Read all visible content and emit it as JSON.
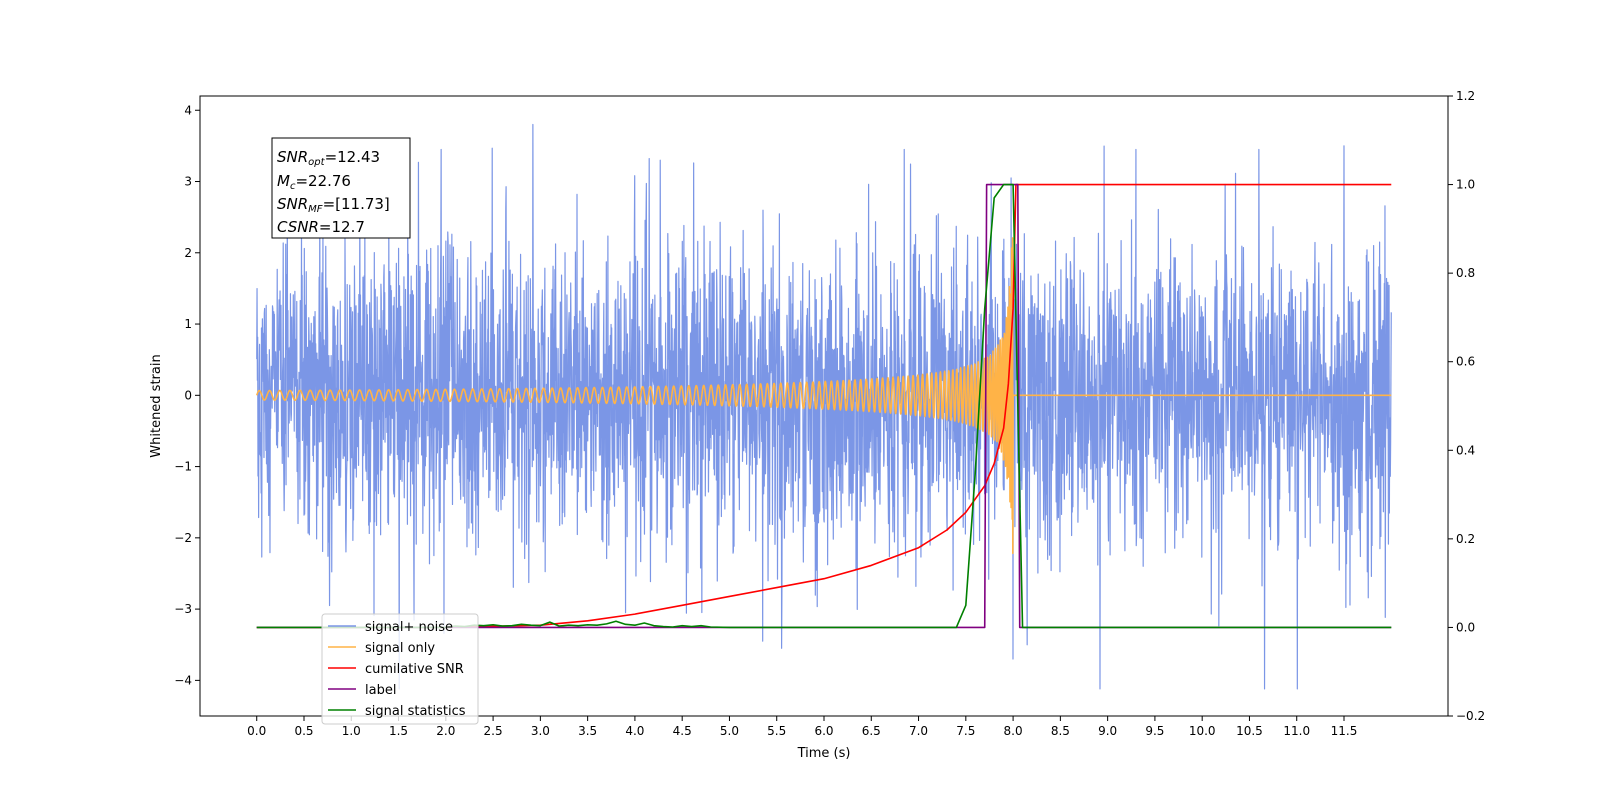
{
  "chart_data": {
    "type": "line",
    "xlabel": "Time (s)",
    "ylabel_left": "Whitened strain",
    "ylabel_right": "",
    "xlim": [
      -0.6,
      12.6
    ],
    "ylim_left": [
      -4.5,
      4.2
    ],
    "ylim_right": [
      -0.2,
      1.2
    ],
    "x_ticks": [
      0.0,
      0.5,
      1.0,
      1.5,
      2.0,
      2.5,
      3.0,
      3.5,
      4.0,
      4.5,
      5.0,
      5.5,
      6.0,
      6.5,
      7.0,
      7.5,
      8.0,
      8.5,
      9.0,
      9.5,
      10.0,
      10.5,
      11.0,
      11.5
    ],
    "x_tick_labels": [
      "0.0",
      "0.5",
      "1.0",
      "1.5",
      "2.0",
      "2.5",
      "3.0",
      "3.5",
      "4.0",
      "4.5",
      "5.0",
      "5.5",
      "6.0",
      "6.5",
      "7.0",
      "7.5",
      "8.0",
      "8.5",
      "9.0",
      "9.5",
      "10.0",
      "10.5",
      "11.0",
      "11.5"
    ],
    "y_left_ticks": [
      4,
      3,
      2,
      1,
      0,
      -1,
      -2,
      -3,
      -4
    ],
    "y_left_tick_labels": [
      "4",
      "3",
      "2",
      "1",
      "0",
      "−1",
      "−2",
      "−3",
      "−4"
    ],
    "y_right_ticks": [
      1.2,
      1.0,
      0.8,
      0.6,
      0.4,
      0.2,
      0.0,
      -0.2
    ],
    "y_right_tick_labels": [
      "1.2",
      "1.0",
      "0.8",
      "0.6",
      "0.4",
      "0.2",
      "0.0",
      "−0.2"
    ],
    "grid": false,
    "legend_position": "lower-left",
    "annotation": {
      "lines": [
        {
          "main": "SNR",
          "sub": "opt",
          "rest": "=12.43"
        },
        {
          "main": "M",
          "sub": "c",
          "rest": "=22.76"
        },
        {
          "main": "SNR",
          "sub": "MF",
          "rest": "=[11.73]"
        },
        {
          "main": "CSNR",
          "sub": "",
          "rest": "=12.7"
        }
      ]
    },
    "series": [
      {
        "name": "signal+ noise",
        "color": "#7b96e6",
        "axis": "left",
        "kind": "noise",
        "x_range": [
          0.0,
          12.0
        ],
        "std": 1.05,
        "max": 3.8,
        "min": -4.12,
        "spikes": [
          [
            2.92,
            3.8
          ],
          [
            8.92,
            -4.12
          ],
          [
            7.98,
            3.05
          ],
          [
            10.6,
            3.45
          ],
          [
            11.5,
            3.5
          ],
          [
            1.95,
            3.45
          ],
          [
            6.85,
            3.45
          ],
          [
            9.3,
            3.45
          ],
          [
            0.77,
            -2.95
          ],
          [
            3.9,
            -3.05
          ],
          [
            5.55,
            -3.55
          ],
          [
            8.0,
            -3.7
          ],
          [
            8.15,
            -3.5
          ],
          [
            5.35,
            -3.45
          ]
        ]
      },
      {
        "name": "signal only",
        "color": "#ffb347",
        "axis": "left",
        "kind": "chirp",
        "x_range": [
          0.0,
          12.0
        ],
        "merger_time": 8.0,
        "peak_amplitude": 2.1
      },
      {
        "name": "cumilative SNR",
        "color": "#ff0000",
        "axis": "right",
        "kind": "line",
        "x": [
          0.0,
          2.0,
          3.0,
          3.5,
          4.0,
          4.5,
          5.0,
          5.5,
          6.0,
          6.5,
          7.0,
          7.3,
          7.5,
          7.7,
          7.8,
          7.9,
          7.95,
          8.0,
          8.03,
          12.0
        ],
        "y": [
          0.0,
          0.0,
          0.005,
          0.015,
          0.03,
          0.05,
          0.07,
          0.09,
          0.11,
          0.14,
          0.18,
          0.22,
          0.26,
          0.32,
          0.37,
          0.45,
          0.55,
          0.72,
          1.0,
          1.0
        ]
      },
      {
        "name": "label",
        "color": "#800080",
        "axis": "right",
        "kind": "line",
        "x": [
          0.0,
          7.7,
          7.72,
          8.05,
          8.07,
          12.0
        ],
        "y": [
          0.0,
          0.0,
          1.0,
          1.0,
          0.0,
          0.0
        ]
      },
      {
        "name": "signal statistics",
        "color": "#008000",
        "axis": "right",
        "kind": "line",
        "x": [
          0.0,
          2.0,
          2.1,
          2.2,
          2.3,
          2.4,
          2.5,
          2.6,
          2.7,
          2.8,
          2.9,
          3.0,
          3.1,
          3.2,
          3.3,
          3.4,
          3.5,
          3.6,
          3.7,
          3.8,
          3.9,
          4.0,
          4.1,
          4.2,
          4.3,
          4.4,
          4.5,
          4.6,
          4.7,
          4.8,
          5.0,
          7.4,
          7.5,
          7.6,
          7.7,
          7.8,
          7.9,
          8.0,
          8.05,
          8.1,
          12.0
        ],
        "y": [
          0.0,
          0.0,
          0.003,
          0.002,
          0.005,
          0.004,
          0.006,
          0.003,
          0.004,
          0.007,
          0.005,
          0.004,
          0.012,
          0.003,
          0.005,
          0.004,
          0.006,
          0.005,
          0.008,
          0.014,
          0.007,
          0.005,
          0.01,
          0.004,
          0.002,
          0.001,
          0.004,
          0.002,
          0.004,
          0.001,
          0.0,
          0.0,
          0.05,
          0.35,
          0.72,
          0.97,
          1.0,
          1.0,
          0.5,
          0.0,
          0.0
        ]
      }
    ]
  }
}
